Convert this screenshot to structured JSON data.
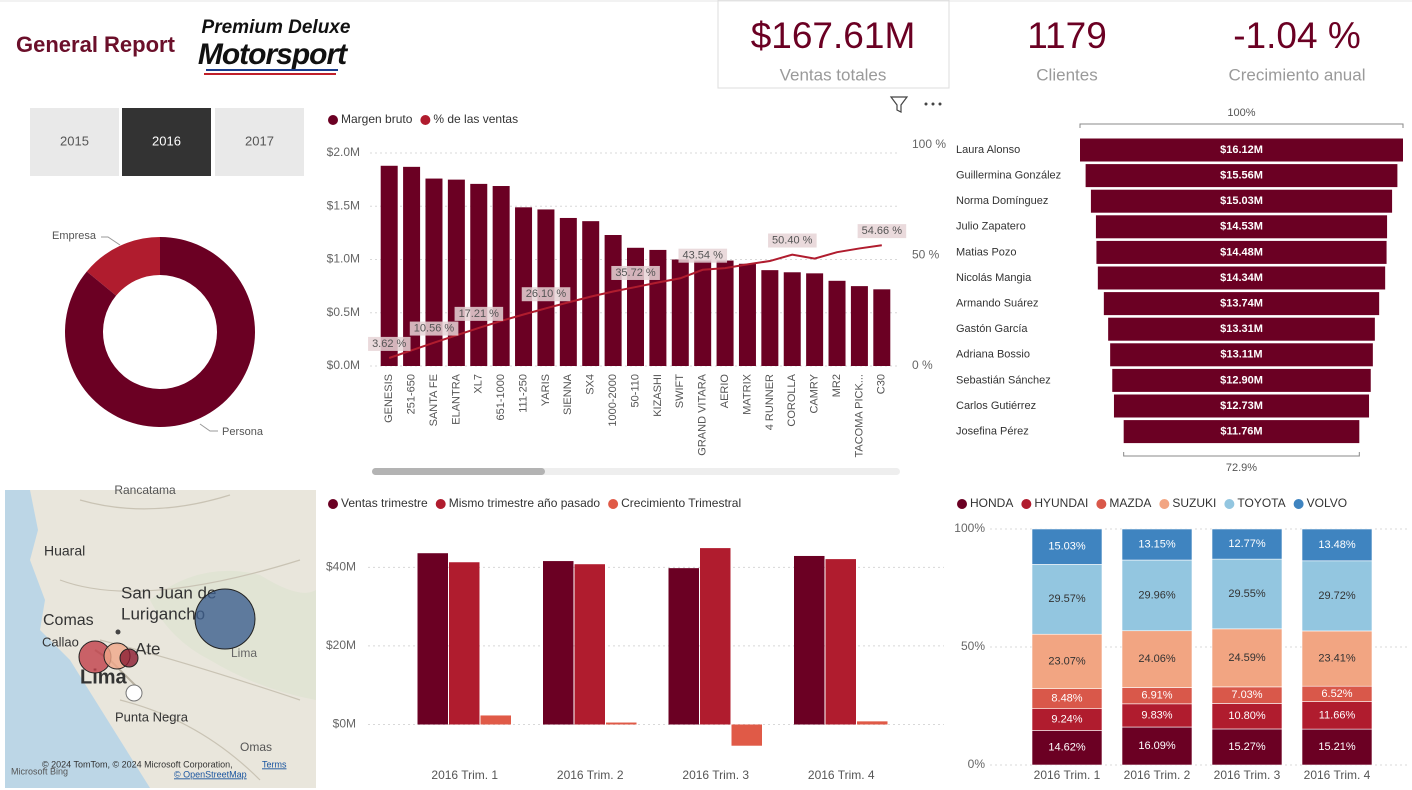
{
  "header": {
    "title": "General Report",
    "logo": [
      "Premium Deluxe",
      "Motorsport"
    ]
  },
  "kpis": [
    {
      "value": "$167.61M",
      "label": "Ventas totales"
    },
    {
      "value": "1179",
      "label": "Clientes"
    },
    {
      "value": "-1.04 %",
      "label": "Crecimiento anual"
    }
  ],
  "slicer": {
    "options": [
      "2015",
      "2016",
      "2017"
    ],
    "selected": 1
  },
  "chart_data": [
    {
      "type": "donut",
      "categories": [
        "Empresa",
        "Persona"
      ],
      "values": [
        14,
        86
      ],
      "colors": [
        "#b01c2e",
        "#6b0023"
      ]
    },
    {
      "type": "bar-line",
      "categories": [
        "GENESIS",
        "251-650",
        "SANTA FE",
        "ELANTRA",
        "XL7",
        "651-1000",
        "111-250",
        "YARIS",
        "SIENNA",
        "SX4",
        "1000-2000",
        "50-110",
        "KIZASHI",
        "SWIFT",
        "GRAND VITARA",
        "AERIO",
        "MATRIX",
        "4 RUNNER",
        "COROLLA",
        "CAMRY",
        "MR2",
        "TACOMA PICK...",
        "C30"
      ],
      "series": [
        {
          "name": "Margen bruto",
          "color": "#6b0023",
          "type": "bar",
          "values": [
            1880000,
            1870000,
            1760000,
            1750000,
            1710000,
            1690000,
            1490000,
            1470000,
            1390000,
            1360000,
            1230000,
            1110000,
            1090000,
            1000000,
            990000,
            990000,
            960000,
            900000,
            880000,
            870000,
            800000,
            750000,
            720000
          ]
        },
        {
          "name": "% de las ventas",
          "color": "#b01c2e",
          "type": "line",
          "axis": "y2",
          "values": [
            3.62,
            7.1,
            10.56,
            13.9,
            17.21,
            20.4,
            23.3,
            26.1,
            28.8,
            31.4,
            33.7,
            35.72,
            37.8,
            39.7,
            43.54,
            44.3,
            46.0,
            47.5,
            50.4,
            48.6,
            51.5,
            53.2,
            54.66
          ],
          "value_labels": [
            "3.62 %",
            null,
            "10.56 %",
            null,
            "17.21 %",
            null,
            null,
            "26.10 %",
            null,
            null,
            null,
            "35.72 %",
            null,
            null,
            "43.54 %",
            null,
            null,
            null,
            "50.40 %",
            null,
            null,
            null,
            "54.66 %"
          ]
        }
      ],
      "ylim": [
        0,
        2000000
      ],
      "yticks": [
        {
          "value": 0,
          "label": "$0.0M"
        },
        {
          "value": 500000,
          "label": "$0.5M"
        },
        {
          "value": 1000000,
          "label": "$1.0M"
        },
        {
          "value": 1500000,
          "label": "$1.5M"
        },
        {
          "value": 2000000,
          "label": "$2.0M"
        }
      ],
      "y2lim": [
        0,
        100
      ],
      "y2ticks": [
        {
          "value": 0,
          "label": "0 %"
        },
        {
          "value": 50,
          "label": "50 %"
        },
        {
          "value": 100,
          "label": "100 %"
        }
      ],
      "grid": true
    },
    {
      "type": "funnel",
      "categories": [
        "Laura Alonso",
        "Guillermina González",
        "Norma Domínguez",
        "Julio Zapatero",
        "Matias Pozo",
        "Nicolás Mangia",
        "Armando Suárez",
        "Gastón García",
        "Adriana Bossio",
        "Sebastián Sánchez",
        "Carlos Gutiérrez",
        "Josefina Pérez"
      ],
      "values": [
        16120000,
        15560000,
        15030000,
        14530000,
        14480000,
        14340000,
        13740000,
        13310000,
        13110000,
        12900000,
        12730000,
        11760000
      ],
      "value_labels": [
        "$16.12M",
        "$15.56M",
        "$15.03M",
        "$14.53M",
        "$14.48M",
        "$14.34M",
        "$13.74M",
        "$13.31M",
        "$13.11M",
        "$12.90M",
        "$12.73M",
        "$11.76M"
      ],
      "color": "#6b0023",
      "top_label": "100%",
      "bottom_label": "72.9%"
    },
    {
      "type": "bar",
      "categories": [
        "2016 Trim. 1",
        "2016 Trim. 2",
        "2016 Trim. 3",
        "2016 Trim. 4"
      ],
      "series": [
        {
          "name": "Ventas trimestre",
          "color": "#6b0023",
          "values": [
            43600000,
            41600000,
            39800000,
            42900000
          ]
        },
        {
          "name": "Mismo trimestre año pasado",
          "color": "#b01c2e",
          "values": [
            41300000,
            40800000,
            44900000,
            42100000
          ]
        },
        {
          "name": "Crecimiento Trimestral",
          "color": "#e05a47",
          "values": [
            2300000,
            500000,
            -5400000,
            800000
          ]
        }
      ],
      "ylim": [
        -7000000,
        49000000
      ],
      "yticks": [
        {
          "value": 0,
          "label": "$0M"
        },
        {
          "value": 20000000,
          "label": "$20M"
        },
        {
          "value": 40000000,
          "label": "$40M"
        }
      ],
      "grid": true
    },
    {
      "type": "stacked-bar",
      "categories": [
        "2016 Trim. 1",
        "2016 Trim. 2",
        "2016 Trim. 3",
        "2016 Trim. 4"
      ],
      "series": [
        {
          "name": "HONDA",
          "color": "#6b0023",
          "label_color": "#ffffff",
          "values": [
            14.62,
            16.09,
            15.27,
            15.21
          ],
          "value_labels": [
            "14.62%",
            "16.09%",
            "15.27%",
            "15.21%"
          ]
        },
        {
          "name": "HYUNDAI",
          "color": "#b01c2e",
          "label_color": "#ffffff",
          "values": [
            9.24,
            9.83,
            10.8,
            11.66
          ],
          "value_labels": [
            "9.24%",
            "9.83%",
            "10.80%",
            "11.66%"
          ]
        },
        {
          "name": "MAZDA",
          "color": "#d9584a",
          "label_color": "#ffffff",
          "values": [
            8.48,
            6.91,
            7.03,
            6.52
          ],
          "value_labels": [
            "8.48%",
            "6.91%",
            "7.03%",
            "6.52%"
          ]
        },
        {
          "name": "SUZUKI",
          "color": "#f2a582",
          "label_color": "#333333",
          "values": [
            23.07,
            24.06,
            24.59,
            23.41
          ],
          "value_labels": [
            "23.07%",
            "24.06%",
            "24.59%",
            "23.41%"
          ]
        },
        {
          "name": "TOYOTA",
          "color": "#93c6e0",
          "label_color": "#333333",
          "values": [
            29.57,
            29.96,
            29.55,
            29.72
          ],
          "value_labels": [
            "29.57%",
            "29.96%",
            "29.55%",
            "29.72%"
          ]
        },
        {
          "name": "VOLVO",
          "color": "#3f84c0",
          "label_color": "#ffffff",
          "values": [
            15.03,
            13.15,
            12.77,
            13.48
          ],
          "value_labels": [
            "15.03%",
            "13.15%",
            "12.77%",
            "13.48%"
          ]
        }
      ],
      "ylim": [
        0,
        100
      ],
      "yticks": [
        {
          "value": 0,
          "label": "0%"
        },
        {
          "value": 50,
          "label": "50%"
        },
        {
          "value": 100,
          "label": "100%"
        }
      ],
      "grid": true
    }
  ],
  "map": {
    "places": [
      "Rancatama",
      "Huaral",
      "San Juan de",
      "Lurigancho",
      "Comas",
      "Callao",
      "Ate",
      "Lima",
      "Lima",
      "Punta Negra",
      "Omas"
    ],
    "attribution": [
      "© 2024 TomTom, © 2024 Microsoft Corporation,",
      "Terms",
      "© OpenStreetMap",
      "Microsoft Bing"
    ],
    "bubbles": [
      {
        "value": 30,
        "color": "#3d5f8f"
      },
      {
        "value": 16,
        "color": "#c0404a"
      },
      {
        "value": 13,
        "color": "#f0a88a"
      },
      {
        "value": 9,
        "color": "#8a1a30"
      }
    ]
  }
}
